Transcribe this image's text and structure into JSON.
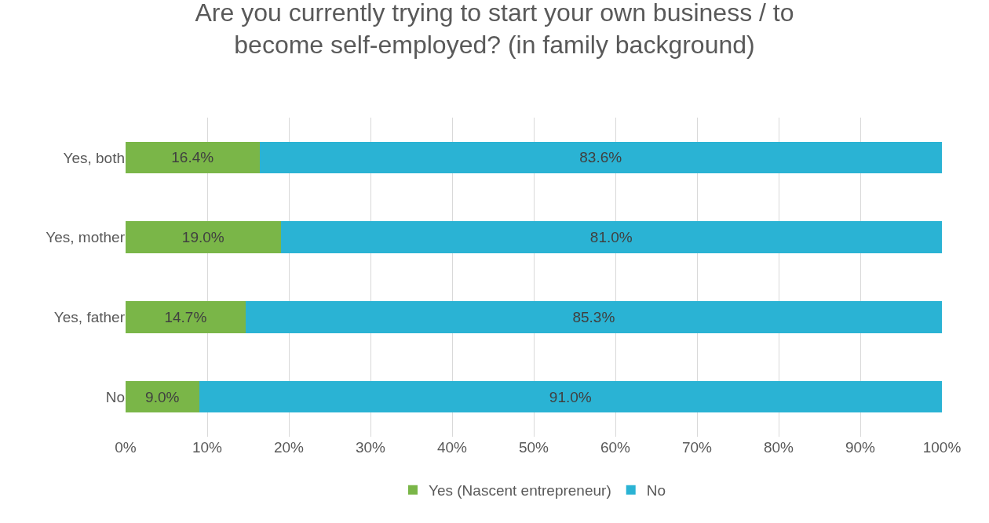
{
  "chart_data": {
    "type": "bar",
    "orientation": "horizontal",
    "stacked": true,
    "title": "Are you currently trying to start your own business / to become self-employed? (in family background)",
    "categories": [
      "Yes, both",
      "Yes, mother",
      "Yes, father",
      "No"
    ],
    "series": [
      {
        "name": "Yes (Nascent entrepreneur)",
        "color": "#7ab648",
        "values": [
          16.4,
          19.0,
          14.7,
          9.0
        ],
        "value_labels": [
          "16.4%",
          "19.0%",
          "14.7%",
          "9.0%"
        ]
      },
      {
        "name": "No",
        "color": "#2ab3d4",
        "values": [
          83.6,
          81.0,
          85.3,
          91.0
        ],
        "value_labels": [
          "83.6%",
          "81.0%",
          "85.3%",
          "91.0%"
        ]
      }
    ],
    "xlim": [
      0,
      100
    ],
    "xticks": [
      {
        "value": 0,
        "label": "0%"
      },
      {
        "value": 10,
        "label": "10%"
      },
      {
        "value": 20,
        "label": "20%"
      },
      {
        "value": 30,
        "label": "30%"
      },
      {
        "value": 40,
        "label": "40%"
      },
      {
        "value": 50,
        "label": "50%"
      },
      {
        "value": 60,
        "label": "60%"
      },
      {
        "value": 70,
        "label": "70%"
      },
      {
        "value": 80,
        "label": "80%"
      },
      {
        "value": 90,
        "label": "90%"
      },
      {
        "value": 100,
        "label": "100%"
      }
    ],
    "grid": "x",
    "legend": "bottom"
  }
}
